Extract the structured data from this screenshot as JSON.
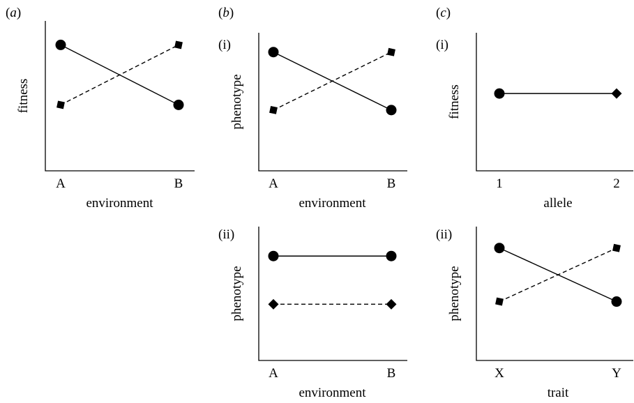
{
  "panel_letters": {
    "a": "a",
    "b": "b",
    "c": "c"
  },
  "chart_data": [
    {
      "id": "a",
      "type": "line",
      "xlabel": "environment",
      "ylabel": "fitness",
      "categories": [
        "A",
        "B"
      ],
      "ylim": [
        0,
        10
      ],
      "series": [
        {
          "marker": "circle",
          "style": "solid",
          "values": [
            8.4,
            4.4
          ]
        },
        {
          "marker": "square",
          "style": "dashed",
          "values": [
            4.4,
            8.4
          ]
        }
      ]
    },
    {
      "id": "b-i",
      "type": "line",
      "sublabel": "(i)",
      "xlabel": "environment",
      "ylabel": "phenotype",
      "categories": [
        "A",
        "B"
      ],
      "ylim": [
        0,
        10
      ],
      "series": [
        {
          "marker": "circle",
          "style": "solid",
          "values": [
            8.6,
            4.4
          ]
        },
        {
          "marker": "square",
          "style": "dashed",
          "values": [
            4.4,
            8.6
          ]
        }
      ]
    },
    {
      "id": "b-ii",
      "type": "line",
      "sublabel": "(ii)",
      "xlabel": "environment",
      "ylabel": "phenotype",
      "categories": [
        "A",
        "B"
      ],
      "ylim": [
        0,
        10
      ],
      "series": [
        {
          "marker": "circle",
          "style": "solid",
          "values": [
            7.8,
            7.8
          ]
        },
        {
          "marker": "diamond",
          "style": "dashed",
          "values": [
            4.2,
            4.2
          ]
        }
      ]
    },
    {
      "id": "c-i",
      "type": "line",
      "sublabel": "(i)",
      "xlabel": "allele",
      "ylabel": "fitness",
      "categories": [
        "1",
        "2"
      ],
      "ylim": [
        0,
        10
      ],
      "series": [
        {
          "marker": "circle",
          "end_marker": "diamond",
          "style": "solid",
          "values": [
            5.6,
            5.6
          ]
        }
      ]
    },
    {
      "id": "c-ii",
      "type": "line",
      "sublabel": "(ii)",
      "xlabel": "trait",
      "ylabel": "phenotype",
      "categories": [
        "X",
        "Y"
      ],
      "ylim": [
        0,
        10
      ],
      "series": [
        {
          "marker": "circle",
          "style": "solid",
          "values": [
            8.4,
            4.4
          ]
        },
        {
          "marker": "square",
          "style": "dashed",
          "values": [
            4.4,
            8.4
          ]
        }
      ]
    }
  ]
}
